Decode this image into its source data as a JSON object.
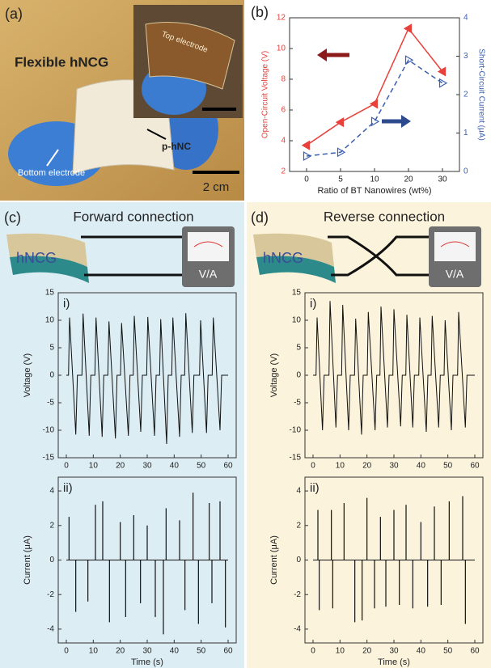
{
  "panels": {
    "a": {
      "label": "(a)",
      "title": "Flexible hNCG",
      "inset_label": "Top electrode",
      "film_label": "p-hNC",
      "electrode_label": "Bottom electrode",
      "scale_bar": "2 cm"
    },
    "b": {
      "label": "(b)"
    },
    "c": {
      "label": "(c)",
      "title": "Forward connection",
      "device": "hNCG",
      "meter": "V/A"
    },
    "d": {
      "label": "(d)",
      "title": "Reverse connection",
      "device": "hNCG",
      "meter": "V/A"
    }
  },
  "chart_data": [
    {
      "type": "line",
      "x_label": "Ratio of BT Nanowires (wt%)",
      "y_label": "Open-Circuit Voltage (V)",
      "y2_label": "Short-Circuit Current (μA)",
      "categories": [
        "0",
        "5",
        "10",
        "20",
        "30"
      ],
      "series": [
        {
          "color": "#e8403a",
          "marker": "filled",
          "values": [
            3.7,
            5.2,
            6.4,
            11.3,
            8.5
          ]
        },
        {
          "color": "#3a5fb0",
          "marker": "open",
          "dashed": true,
          "axis": "y2",
          "values": [
            0.4,
            0.5,
            1.3,
            2.9,
            2.3
          ]
        }
      ],
      "ylim": [
        2,
        12
      ],
      "yticks": [
        2,
        4,
        6,
        8,
        10,
        12
      ],
      "y2lim": [
        0,
        4
      ],
      "y2ticks": [
        0,
        1,
        2,
        3,
        4
      ]
    },
    {
      "type": "line",
      "label": "i)",
      "y_label": "Voltage (V)",
      "x": [
        0,
        0.8,
        1.2,
        3.5,
        4.1,
        5.8,
        6.2,
        8.5,
        9.1,
        10.6,
        11,
        13.3,
        13.9,
        15.4,
        15.8,
        18.2,
        18.8,
        20.1,
        20.5,
        23,
        23.6,
        24.8,
        25.2,
        27.6,
        28.2,
        29.8,
        30.2,
        32.7,
        33.3,
        34.6,
        35,
        37.2,
        37.8,
        39.1,
        39.5,
        42,
        42.6,
        43.9,
        44.3,
        46.7,
        47.3,
        49.4,
        49.8,
        52,
        52.6,
        54.1,
        54.5,
        57,
        57.6,
        60
      ],
      "series": [
        {
          "color": "#111",
          "values": [
            0,
            0,
            10.5,
            -10.8,
            0,
            0,
            11.2,
            -11,
            0,
            0,
            10.5,
            -11.2,
            0,
            0,
            9.8,
            -11.5,
            0,
            0,
            9.5,
            -11,
            0,
            0,
            10.8,
            -10.3,
            0,
            0,
            10.6,
            -11,
            0,
            0,
            10.2,
            -12.5,
            0,
            0,
            10.5,
            -11.2,
            0,
            0,
            11.3,
            -10.5,
            0,
            0,
            10,
            -10.5,
            0,
            0,
            10.5,
            -10,
            0,
            0
          ]
        }
      ],
      "xlim": [
        -3,
        63
      ],
      "xticks": [
        0,
        10,
        20,
        30,
        40,
        50,
        60
      ],
      "ylim": [
        -15,
        15
      ],
      "yticks": [
        -15,
        -10,
        -5,
        0,
        5,
        10,
        15
      ]
    },
    {
      "type": "stem",
      "label": "ii)",
      "y_label": "Current (μA)",
      "x_label": "Time (s)",
      "x": [
        1,
        3.5,
        8,
        10.8,
        13.5,
        16,
        20,
        22,
        25,
        27.5,
        30,
        33,
        36,
        37,
        42,
        44,
        47,
        49,
        53,
        54,
        57,
        59
      ],
      "series": [
        {
          "color": "#111",
          "values": [
            2.5,
            -3.0,
            -2.4,
            3.2,
            3.4,
            -3.6,
            2.2,
            -3.3,
            2.6,
            -2.5,
            2.0,
            -3.3,
            -4.3,
            3.0,
            2.3,
            -2.9,
            3.9,
            -3.7,
            3.3,
            -2.5,
            3.4,
            -3.9
          ]
        }
      ],
      "xlim": [
        -3,
        63
      ],
      "xticks": [
        0,
        10,
        20,
        30,
        40,
        50,
        60
      ],
      "ylim": [
        -4.8,
        4.8
      ],
      "yticks": [
        -4,
        -2,
        0,
        2,
        4
      ]
    },
    {
      "type": "line",
      "label": "i)",
      "y_label": "Voltage (V)",
      "x": [
        0,
        1.1,
        1.5,
        3.5,
        4.1,
        5.9,
        6.3,
        8.5,
        9.1,
        10.6,
        11,
        13.2,
        13.8,
        15.4,
        15.8,
        18,
        18.6,
        20.1,
        20.5,
        23,
        23.6,
        24.8,
        25.2,
        27.6,
        28.2,
        29.6,
        30,
        32.5,
        33.1,
        34.4,
        34.8,
        37,
        37.6,
        39.2,
        39.6,
        42,
        42.6,
        43.8,
        44.2,
        46.6,
        47.2,
        48.6,
        49,
        51.3,
        51.9,
        53.6,
        54,
        56.5,
        57.1,
        60
      ],
      "series": [
        {
          "color": "#111",
          "values": [
            0,
            0,
            10.5,
            -10,
            0,
            0,
            13.5,
            -9.5,
            0,
            0,
            12.8,
            -10,
            0,
            0,
            10.3,
            -10.8,
            0,
            0,
            11.5,
            -10,
            0,
            0,
            12.5,
            -9.5,
            0,
            0,
            12,
            -9.3,
            0,
            0,
            11,
            -9.5,
            0,
            0,
            10.5,
            -10.3,
            0,
            0,
            10.8,
            -9.5,
            0,
            0,
            10,
            -10,
            0,
            0,
            11.5,
            -9.5,
            0,
            0
          ]
        }
      ],
      "xlim": [
        -3,
        63
      ],
      "xticks": [
        0,
        10,
        20,
        30,
        40,
        50,
        60
      ],
      "ylim": [
        -15,
        15
      ],
      "yticks": [
        -15,
        -10,
        -5,
        0,
        5,
        10,
        15
      ]
    },
    {
      "type": "stem",
      "label": "ii)",
      "y_label": "Current (μA)",
      "x_label": "Time (s)",
      "x": [
        1.8,
        2.3,
        6.8,
        7.3,
        11.5,
        15.5,
        18.2,
        20,
        22.8,
        25,
        27,
        30,
        32,
        34.5,
        37,
        40,
        42.5,
        45,
        47.5,
        50.5,
        55.5,
        56.5
      ],
      "series": [
        {
          "color": "#111",
          "values": [
            2.9,
            -2.9,
            2.9,
            -2.8,
            3.3,
            -3.6,
            -3.5,
            3.6,
            -2.8,
            2.5,
            -2.7,
            2.9,
            -2.6,
            3.2,
            -2.8,
            2.2,
            -2.7,
            3.1,
            -2.6,
            3.4,
            3.7,
            -3.7
          ]
        }
      ],
      "xlim": [
        -3,
        63
      ],
      "xticks": [
        0,
        10,
        20,
        30,
        40,
        50,
        60
      ],
      "ylim": [
        -4.8,
        4.8
      ],
      "yticks": [
        -4,
        -2,
        0,
        2,
        4
      ]
    }
  ]
}
